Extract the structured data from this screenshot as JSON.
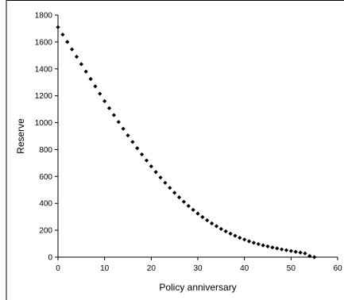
{
  "chart_data": {
    "type": "scatter",
    "xlabel": "Policy anniversary",
    "ylabel": "Reserve",
    "xlim": [
      0,
      60
    ],
    "ylim": [
      0,
      1800
    ],
    "xticks": [
      0,
      10,
      20,
      30,
      40,
      50,
      60
    ],
    "yticks": [
      0,
      200,
      400,
      600,
      800,
      1000,
      1200,
      1400,
      1600,
      1800
    ],
    "grid": false,
    "legend": "none",
    "marker": "diamond",
    "marker_color": "#000000",
    "x": [
      0,
      1,
      2,
      3,
      4,
      5,
      6,
      7,
      8,
      9,
      10,
      11,
      12,
      13,
      14,
      15,
      16,
      17,
      18,
      19,
      20,
      21,
      22,
      23,
      24,
      25,
      26,
      27,
      28,
      29,
      30,
      31,
      32,
      33,
      34,
      35,
      36,
      37,
      38,
      39,
      40,
      41,
      42,
      43,
      44,
      45,
      46,
      47,
      48,
      49,
      50,
      51,
      52,
      53,
      54,
      55
    ],
    "y": [
      1710,
      1655,
      1600,
      1545,
      1490,
      1435,
      1380,
      1325,
      1270,
      1215,
      1160,
      1108,
      1056,
      1005,
      955,
      905,
      857,
      810,
      764,
      719,
      675,
      633,
      592,
      553,
      515,
      479,
      445,
      412,
      381,
      352,
      324,
      298,
      274,
      251,
      230,
      210,
      192,
      175,
      159,
      144,
      131,
      118,
      107,
      97,
      88,
      80,
      72,
      65,
      58,
      52,
      46,
      40,
      34,
      28,
      8,
      0
    ]
  }
}
